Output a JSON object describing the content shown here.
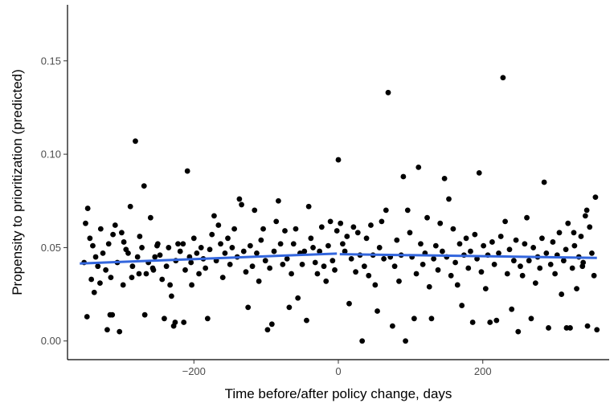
{
  "chart_data": {
    "type": "scatter",
    "title": "",
    "xlabel": "Time before/after policy change, days",
    "ylabel": "Propensity to prioritization (predicted)",
    "xlim": [
      -375,
      375
    ],
    "ylim": [
      -0.01,
      0.18
    ],
    "x_ticks": [
      -200,
      0,
      200
    ],
    "x_tick_labels": [
      "−200",
      "0",
      "200"
    ],
    "y_ticks": [
      0.0,
      0.05,
      0.1,
      0.15
    ],
    "y_tick_labels": [
      "0.00",
      "0.05",
      "0.10",
      "0.15"
    ],
    "grid": false,
    "legend": "none",
    "point_color": "#000000",
    "fit_color": "#3366dd",
    "fit_segments": [
      {
        "x": [
          -358,
          -2
        ],
        "y": [
          0.0415,
          0.0468
        ]
      },
      {
        "x": [
          2,
          358
        ],
        "y": [
          0.0465,
          0.0445
        ]
      }
    ],
    "points": [
      [
        -350,
        0.063
      ],
      [
        -347,
        0.071
      ],
      [
        -344,
        0.055
      ],
      [
        -340,
        0.051
      ],
      [
        -336,
        0.045
      ],
      [
        -333,
        0.04
      ],
      [
        -348,
        0.013
      ],
      [
        -352,
        0.042
      ],
      [
        -329,
        0.06
      ],
      [
        -326,
        0.047
      ],
      [
        -322,
        0.038
      ],
      [
        -318,
        0.052
      ],
      [
        -315,
        0.034
      ],
      [
        -312,
        0.057
      ],
      [
        -309,
        0.062
      ],
      [
        -306,
        0.042
      ],
      [
        -342,
        0.033
      ],
      [
        -338,
        0.026
      ],
      [
        -330,
        0.031
      ],
      [
        -320,
        0.006
      ],
      [
        -316,
        0.014
      ],
      [
        -313,
        0.014
      ],
      [
        -303,
        0.005
      ],
      [
        -300,
        0.058
      ],
      [
        -297,
        0.053
      ],
      [
        -294,
        0.049
      ],
      [
        -291,
        0.047
      ],
      [
        -288,
        0.072
      ],
      [
        -285,
        0.04
      ],
      [
        -281,
        0.107
      ],
      [
        -278,
        0.045
      ],
      [
        -275,
        0.056
      ],
      [
        -272,
        0.05
      ],
      [
        -269,
        0.083
      ],
      [
        -266,
        0.036
      ],
      [
        -263,
        0.042
      ],
      [
        -260,
        0.066
      ],
      [
        -257,
        0.039
      ],
      [
        -254,
        0.045
      ],
      [
        -251,
        0.051
      ],
      [
        -298,
        0.03
      ],
      [
        -286,
        0.034
      ],
      [
        -276,
        0.036
      ],
      [
        -268,
        0.014
      ],
      [
        -256,
        0.038
      ],
      [
        -250,
        0.052
      ],
      [
        -247,
        0.046
      ],
      [
        -244,
        0.033
      ],
      [
        -241,
        0.012
      ],
      [
        -238,
        0.04
      ],
      [
        -235,
        0.05
      ],
      [
        -231,
        0.024
      ],
      [
        -228,
        0.008
      ],
      [
        -225,
        0.043
      ],
      [
        -222,
        0.052
      ],
      [
        -219,
        0.048
      ],
      [
        -215,
        0.052
      ],
      [
        -212,
        0.038
      ],
      [
        -209,
        0.091
      ],
      [
        -206,
        0.045
      ],
      [
        -203,
        0.03
      ],
      [
        -200,
        0.055
      ],
      [
        -196,
        0.047
      ],
      [
        -193,
        0.036
      ],
      [
        -233,
        0.03
      ],
      [
        -226,
        0.01
      ],
      [
        -214,
        0.01
      ],
      [
        -204,
        0.042
      ],
      [
        -190,
        0.05
      ],
      [
        -187,
        0.044
      ],
      [
        -184,
        0.039
      ],
      [
        -181,
        0.012
      ],
      [
        -178,
        0.049
      ],
      [
        -175,
        0.057
      ],
      [
        -172,
        0.067
      ],
      [
        -169,
        0.043
      ],
      [
        -166,
        0.062
      ],
      [
        -163,
        0.052
      ],
      [
        -160,
        0.034
      ],
      [
        -157,
        0.047
      ],
      [
        -153,
        0.055
      ],
      [
        -150,
        0.041
      ],
      [
        -147,
        0.05
      ],
      [
        -144,
        0.06
      ],
      [
        -140,
        0.045
      ],
      [
        -137,
        0.076
      ],
      [
        -134,
        0.073
      ],
      [
        -131,
        0.048
      ],
      [
        -128,
        0.037
      ],
      [
        -125,
        0.018
      ],
      [
        -122,
        0.051
      ],
      [
        -119,
        0.04
      ],
      [
        -116,
        0.07
      ],
      [
        -113,
        0.047
      ],
      [
        -110,
        0.032
      ],
      [
        -107,
        0.054
      ],
      [
        -104,
        0.06
      ],
      [
        -101,
        0.043
      ],
      [
        -98,
        0.006
      ],
      [
        -95,
        0.039
      ],
      [
        -92,
        0.009
      ],
      [
        -89,
        0.048
      ],
      [
        -86,
        0.064
      ],
      [
        -83,
        0.075
      ],
      [
        -80,
        0.052
      ],
      [
        -77,
        0.041
      ],
      [
        -74,
        0.059
      ],
      [
        -71,
        0.044
      ],
      [
        -68,
        0.018
      ],
      [
        -65,
        0.036
      ],
      [
        -62,
        0.052
      ],
      [
        -59,
        0.06
      ],
      [
        -56,
        0.023
      ],
      [
        -53,
        0.047
      ],
      [
        -50,
        0.041
      ],
      [
        -47,
        0.048
      ],
      [
        -44,
        0.011
      ],
      [
        -41,
        0.072
      ],
      [
        -38,
        0.055
      ],
      [
        -35,
        0.05
      ],
      [
        -32,
        0.042
      ],
      [
        -29,
        0.036
      ],
      [
        -26,
        0.048
      ],
      [
        -23,
        0.061
      ],
      [
        -20,
        0.04
      ],
      [
        -17,
        0.032
      ],
      [
        -14,
        0.051
      ],
      [
        -11,
        0.064
      ],
      [
        -8,
        0.043
      ],
      [
        -5,
        0.038
      ],
      [
        -2,
        0.059
      ],
      [
        0,
        0.097
      ],
      [
        3,
        0.063
      ],
      [
        6,
        0.052
      ],
      [
        9,
        0.048
      ],
      [
        12,
        0.056
      ],
      [
        15,
        0.02
      ],
      [
        18,
        0.044
      ],
      [
        21,
        0.061
      ],
      [
        24,
        0.037
      ],
      [
        27,
        0.058
      ],
      [
        30,
        0.046
      ],
      [
        33,
        0.0
      ],
      [
        36,
        0.04
      ],
      [
        39,
        0.055
      ],
      [
        42,
        0.035
      ],
      [
        45,
        0.062
      ],
      [
        48,
        0.046
      ],
      [
        51,
        0.03
      ],
      [
        54,
        0.016
      ],
      [
        57,
        0.05
      ],
      [
        60,
        0.064
      ],
      [
        63,
        0.044
      ],
      [
        66,
        0.07
      ],
      [
        69,
        0.133
      ],
      [
        72,
        0.045
      ],
      [
        75,
        0.008
      ],
      [
        78,
        0.04
      ],
      [
        81,
        0.054
      ],
      [
        84,
        0.032
      ],
      [
        87,
        0.046
      ],
      [
        90,
        0.088
      ],
      [
        93,
        0.0
      ],
      [
        96,
        0.07
      ],
      [
        99,
        0.058
      ],
      [
        102,
        0.045
      ],
      [
        105,
        0.012
      ],
      [
        108,
        0.036
      ],
      [
        111,
        0.093
      ],
      [
        114,
        0.052
      ],
      [
        117,
        0.041
      ],
      [
        120,
        0.047
      ],
      [
        123,
        0.066
      ],
      [
        126,
        0.029
      ],
      [
        129,
        0.012
      ],
      [
        132,
        0.044
      ],
      [
        135,
        0.051
      ],
      [
        138,
        0.038
      ],
      [
        141,
        0.063
      ],
      [
        144,
        0.048
      ],
      [
        147,
        0.087
      ],
      [
        150,
        0.045
      ],
      [
        153,
        0.076
      ],
      [
        156,
        0.035
      ],
      [
        159,
        0.06
      ],
      [
        162,
        0.042
      ],
      [
        165,
        0.03
      ],
      [
        168,
        0.052
      ],
      [
        171,
        0.019
      ],
      [
        174,
        0.046
      ],
      [
        177,
        0.055
      ],
      [
        180,
        0.039
      ],
      [
        183,
        0.048
      ],
      [
        186,
        0.01
      ],
      [
        189,
        0.057
      ],
      [
        192,
        0.044
      ],
      [
        195,
        0.09
      ],
      [
        198,
        0.037
      ],
      [
        201,
        0.051
      ],
      [
        204,
        0.028
      ],
      [
        207,
        0.046
      ],
      [
        210,
        0.01
      ],
      [
        213,
        0.053
      ],
      [
        216,
        0.041
      ],
      [
        219,
        0.011
      ],
      [
        222,
        0.047
      ],
      [
        225,
        0.056
      ],
      [
        228,
        0.141
      ],
      [
        231,
        0.064
      ],
      [
        234,
        0.036
      ],
      [
        237,
        0.049
      ],
      [
        240,
        0.017
      ],
      [
        243,
        0.043
      ],
      [
        246,
        0.054
      ],
      [
        249,
        0.005
      ],
      [
        252,
        0.04
      ],
      [
        255,
        0.035
      ],
      [
        258,
        0.052
      ],
      [
        261,
        0.066
      ],
      [
        264,
        0.043
      ],
      [
        267,
        0.012
      ],
      [
        270,
        0.05
      ],
      [
        273,
        0.031
      ],
      [
        276,
        0.045
      ],
      [
        279,
        0.039
      ],
      [
        282,
        0.055
      ],
      [
        285,
        0.085
      ],
      [
        288,
        0.047
      ],
      [
        291,
        0.007
      ],
      [
        294,
        0.041
      ],
      [
        297,
        0.053
      ],
      [
        300,
        0.036
      ],
      [
        303,
        0.046
      ],
      [
        306,
        0.058
      ],
      [
        309,
        0.025
      ],
      [
        312,
        0.043
      ],
      [
        315,
        0.049
      ],
      [
        318,
        0.063
      ],
      [
        321,
        0.007
      ],
      [
        324,
        0.039
      ],
      [
        327,
        0.051
      ],
      [
        330,
        0.028
      ],
      [
        333,
        0.045
      ],
      [
        336,
        0.056
      ],
      [
        339,
        0.042
      ],
      [
        342,
        0.067
      ],
      [
        345,
        0.008
      ],
      [
        348,
        0.061
      ],
      [
        351,
        0.047
      ],
      [
        354,
        0.035
      ],
      [
        356,
        0.077
      ],
      [
        358,
        0.006
      ],
      [
        344,
        0.07
      ],
      [
        338,
        0.04
      ],
      [
        326,
        0.058
      ],
      [
        316,
        0.007
      ]
    ]
  }
}
